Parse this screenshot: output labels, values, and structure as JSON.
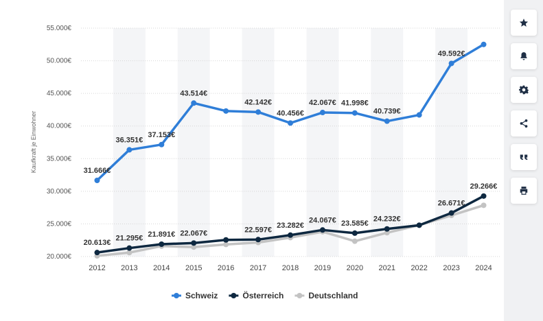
{
  "chart_data": {
    "type": "line",
    "title": "",
    "xlabel": "",
    "ylabel": "Kaufkraft je Einwohner",
    "ylim": [
      20000,
      55000
    ],
    "yticks": [
      {
        "value": 20000,
        "label": "20.000€"
      },
      {
        "value": 25000,
        "label": "25.000€"
      },
      {
        "value": 30000,
        "label": "30.000€"
      },
      {
        "value": 35000,
        "label": "35.000€"
      },
      {
        "value": 40000,
        "label": "40.000€"
      },
      {
        "value": 45000,
        "label": "45.000€"
      },
      {
        "value": 50000,
        "label": "50.000€"
      },
      {
        "value": 55000,
        "label": "55.000€"
      }
    ],
    "categories": [
      "2012",
      "2013",
      "2014",
      "2015",
      "2016",
      "2017",
      "2018",
      "2019",
      "2020",
      "2021",
      "2022",
      "2023",
      "2024"
    ],
    "grid": true,
    "legend_position": "bottom-center",
    "series": [
      {
        "name": "Schweiz",
        "color": "#2f7ed8",
        "values": [
          31666,
          36351,
          37153,
          43514,
          42300,
          42142,
          40456,
          42067,
          41998,
          40739,
          41700,
          49592,
          52500
        ],
        "labels": [
          "31.666€",
          "36.351€",
          "37.153€",
          "43.514€",
          "",
          "42.142€",
          "40.456€",
          "42.067€",
          "41.998€",
          "40.739€",
          "",
          "49.592€",
          ""
        ]
      },
      {
        "name": "Österreich",
        "color": "#0e2840",
        "values": [
          20613,
          21295,
          21891,
          22067,
          22550,
          22597,
          23282,
          24067,
          23585,
          24232,
          24800,
          26671,
          29266
        ],
        "labels": [
          "20.613€",
          "21.295€",
          "21.891€",
          "22.067€",
          "",
          "22.597€",
          "23.282€",
          "24.067€",
          "23.585€",
          "24.232€",
          "",
          "26.671€",
          "29.266€"
        ]
      },
      {
        "name": "Deutschland",
        "color": "#c3c3c3",
        "values": [
          20100,
          20600,
          21600,
          21450,
          21850,
          22150,
          22900,
          23800,
          22350,
          23650,
          24800,
          26300,
          27850
        ],
        "labels": [
          "",
          "",
          "",
          "",
          "",
          "",
          "",
          "",
          "",
          "",
          "",
          "",
          ""
        ]
      }
    ]
  },
  "toolbar": {
    "items": [
      {
        "name": "favorite",
        "icon": "star-icon"
      },
      {
        "name": "notification",
        "icon": "bell-icon"
      },
      {
        "name": "settings",
        "icon": "gear-icon"
      },
      {
        "name": "share",
        "icon": "share-icon"
      },
      {
        "name": "cite",
        "icon": "quote-icon"
      },
      {
        "name": "print",
        "icon": "printer-icon"
      }
    ]
  }
}
